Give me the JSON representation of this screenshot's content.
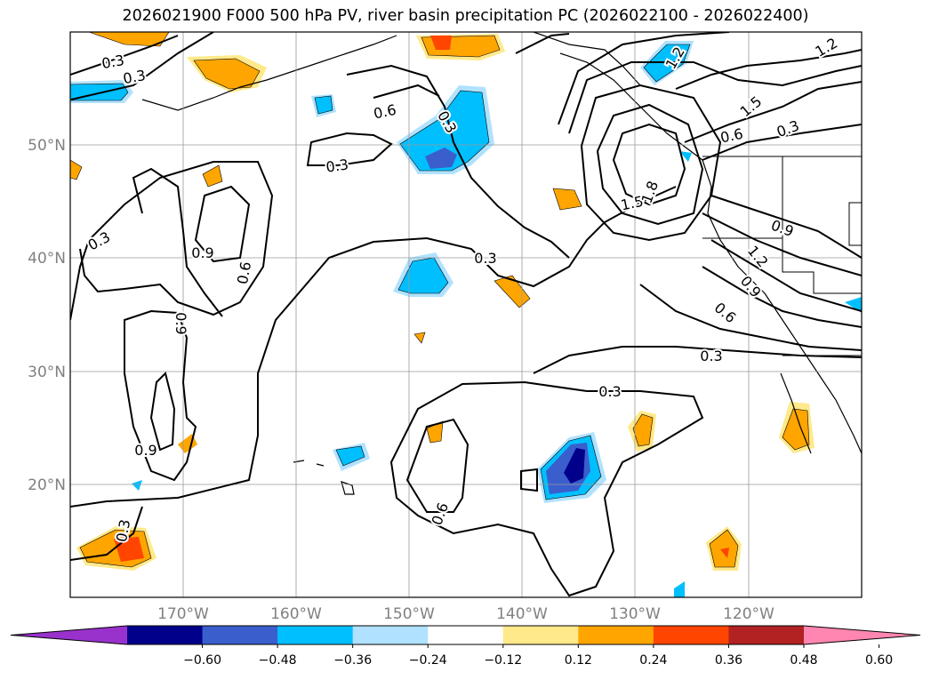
{
  "title": "2026021900 F000 500 hPa PV, river basin precipitation PC (2026022100 - 2026022400)",
  "latitude_labels": [
    "50°N",
    "40°N",
    "30°N",
    "20°N"
  ],
  "longitude_labels": [
    "170°W",
    "160°W",
    "150°W",
    "140°W",
    "130°W",
    "120°W"
  ],
  "contour_labels": [
    "0.3",
    "0.3",
    "0.6",
    "0.3",
    "0.3",
    "0.3",
    "0.9",
    "0.6",
    "0.9",
    "0.9",
    "0.3",
    "0.3",
    "0.6",
    "0.3",
    "1.5",
    "1.8",
    "1.2",
    "1.5",
    "0.6",
    "0.3",
    "0.9",
    "1.2",
    "0.9",
    "0.6",
    "0.3",
    "1.2"
  ],
  "colorbar": {
    "ticks": [
      "−0.60",
      "−0.48",
      "−0.36",
      "−0.24",
      "−0.12",
      "0.12",
      "0.24",
      "0.36",
      "0.48",
      "0.60"
    ],
    "colors": [
      "#9932cc",
      "#00008b",
      "#3a5fcd",
      "#00bfff",
      "#b0e2ff",
      "#ffffff",
      "#ffe98a",
      "#ffa500",
      "#ff4500",
      "#b22222",
      "#ff86b0"
    ]
  },
  "map_extent": {
    "lon_min": -180,
    "lon_max": -110,
    "lat_min": 10,
    "lat_max": 60
  }
}
